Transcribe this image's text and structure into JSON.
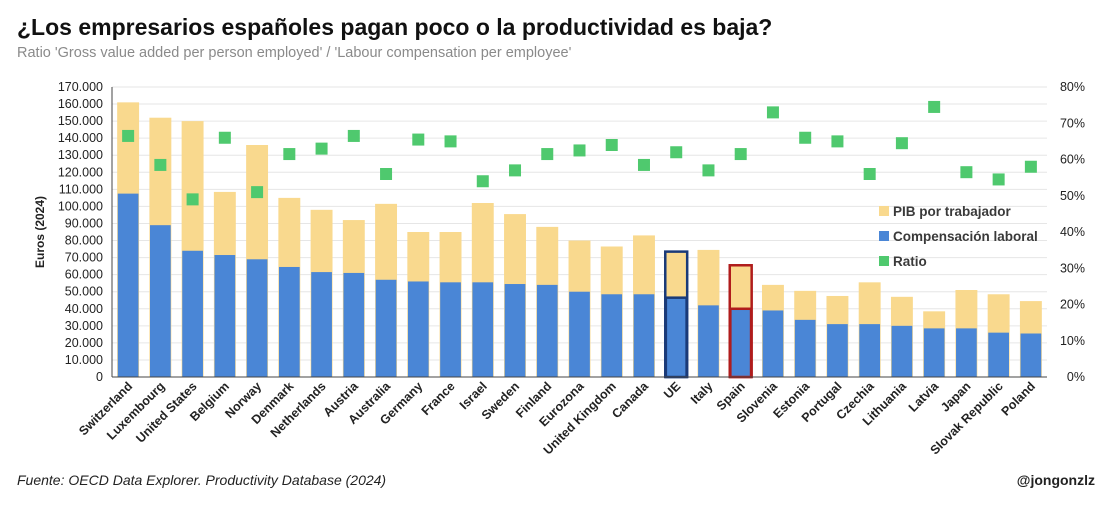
{
  "header": {
    "title": "¿Los empresarios españoles pagan poco o la productividad es baja?",
    "subtitle": "Ratio 'Gross value added per person employed' / 'Labour compensation per employee'"
  },
  "footer": {
    "source": "Fuente: OECD Data Explorer. Productivity Database (2024)",
    "handle": "@jongonzlz"
  },
  "colors": {
    "pib": "#f9d98e",
    "comp": "#4a86d6",
    "ratio": "#4fc96e",
    "ue_outline": "#1a3a78",
    "spain_outline": "#b01c1c",
    "grid": "#e6e6e6"
  },
  "chart_data": {
    "type": "bar",
    "title": "¿Los empresarios españoles pagan poco o la productividad es baja?",
    "ylabel": "Euros (2024)",
    "ylim": [
      0,
      170000
    ],
    "y2lim": [
      0,
      0.8
    ],
    "y_ticks": [
      "0",
      "10.000",
      "20.000",
      "30.000",
      "40.000",
      "50.000",
      "60.000",
      "70.000",
      "80.000",
      "90.000",
      "100.000",
      "110.000",
      "120.000",
      "130.000",
      "140.000",
      "150.000",
      "160.000",
      "170.000"
    ],
    "y2_ticks": [
      "0%",
      "10%",
      "20%",
      "30%",
      "40%",
      "50%",
      "60%",
      "70%",
      "80%"
    ],
    "categories": [
      "Switzerland",
      "Luxembourg",
      "United States",
      "Belgium",
      "Norway",
      "Denmark",
      "Netherlands",
      "Austria",
      "Australia",
      "Germany",
      "France",
      "Israel",
      "Sweden",
      "Finland",
      "Eurozona",
      "United Kingdom",
      "Canada",
      "UE",
      "Italy",
      "Spain",
      "Slovenia",
      "Estonia",
      "Portugal",
      "Czechia",
      "Lithuania",
      "Latvia",
      "Japan",
      "Slovak Republic",
      "Poland"
    ],
    "highlighted": {
      "UE": "ue_outline",
      "Spain": "spain_outline"
    },
    "legend": [
      "PIB por trabajador",
      "Compensación laboral",
      "Ratio"
    ],
    "legend_position": "right",
    "series": [
      {
        "name": "PIB por trabajador",
        "kind": "bar",
        "values": [
          161000,
          152000,
          150000,
          108500,
          136000,
          105000,
          98000,
          92000,
          101500,
          85000,
          85000,
          102000,
          95500,
          88000,
          80000,
          76500,
          83000,
          73500,
          74500,
          65500,
          54000,
          50500,
          47500,
          55500,
          47000,
          38500,
          51000,
          48500,
          44500
        ]
      },
      {
        "name": "Compensación laboral",
        "kind": "bar",
        "values": [
          107500,
          89000,
          74000,
          71500,
          69000,
          64500,
          61500,
          61000,
          57000,
          56000,
          55500,
          55500,
          54500,
          54000,
          50000,
          48500,
          48500,
          46500,
          42000,
          40000,
          39000,
          33500,
          31000,
          31000,
          30000,
          28500,
          28500,
          26000,
          25500
        ]
      },
      {
        "name": "Ratio",
        "kind": "scatter",
        "axis": "right",
        "values": [
          0.665,
          0.585,
          0.49,
          0.66,
          0.51,
          0.615,
          0.63,
          0.665,
          0.56,
          0.655,
          0.65,
          0.54,
          0.57,
          0.615,
          0.625,
          0.64,
          0.585,
          0.62,
          0.57,
          0.615,
          0.73,
          0.66,
          0.65,
          0.56,
          0.645,
          0.745,
          0.565,
          0.545,
          0.58
        ]
      }
    ]
  }
}
